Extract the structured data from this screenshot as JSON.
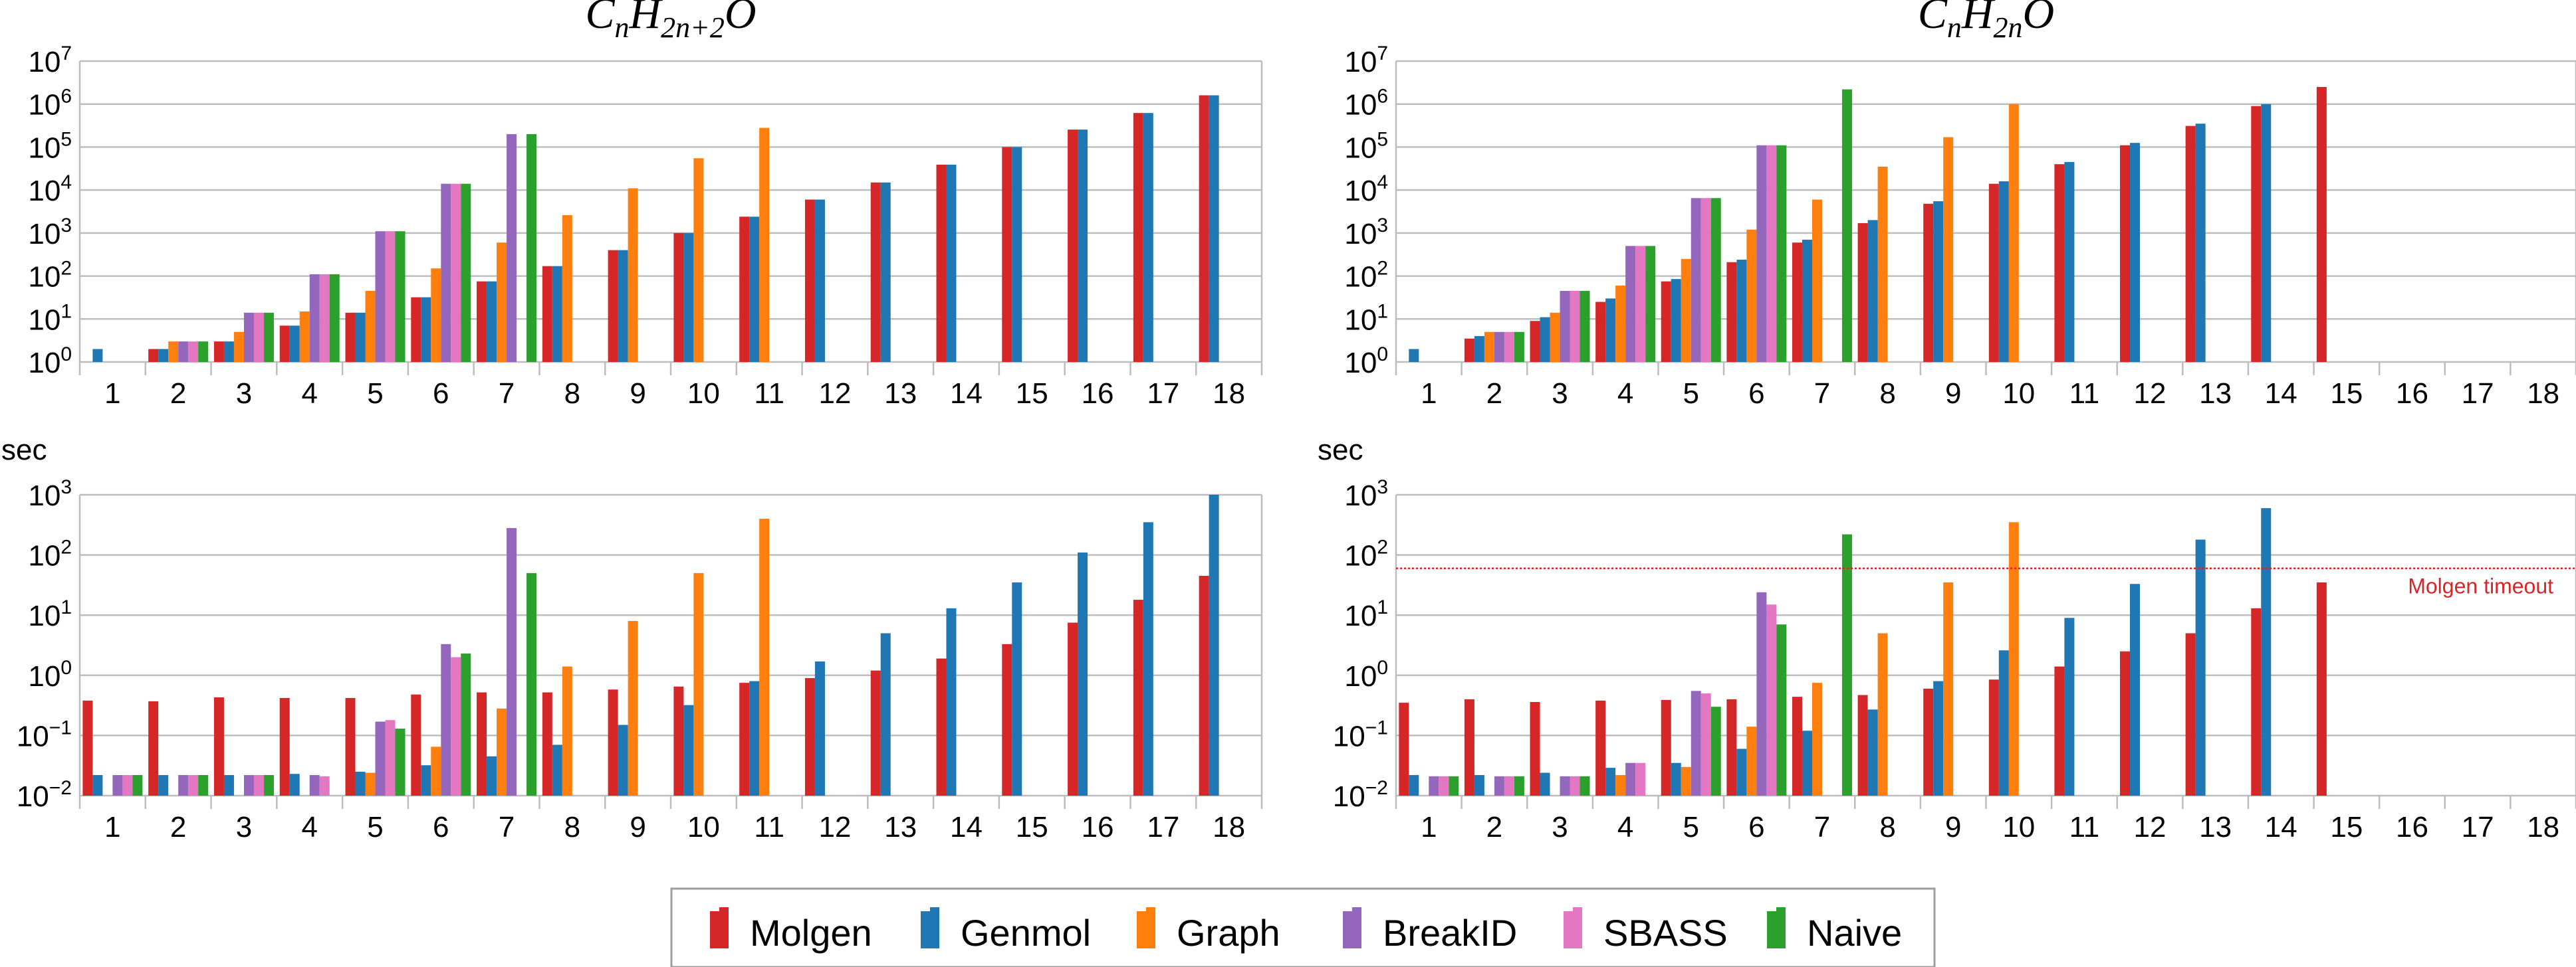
{
  "colors": {
    "Molgen": "#d62728",
    "Genmol": "#1f77b4",
    "Graph": "#ff7f0e",
    "BreakID": "#9467bd",
    "SBASS": "#e377c2",
    "Naive": "#2ca02c",
    "grid": "#bdbdbd",
    "timeout_line": "#d62728"
  },
  "legend": {
    "labels": [
      "Molgen",
      "Genmol",
      "Graph",
      "BreakID",
      "SBASS",
      "Naive"
    ]
  },
  "chart_data": [
    {
      "type": "bar",
      "title": "CnH2n+2O",
      "title_parts": [
        "C",
        "n",
        "H",
        "2n+2",
        "O"
      ],
      "yunit": "",
      "yscale": "log",
      "ylim_exp": [
        0,
        7
      ],
      "ytick_exponents": [
        0,
        1,
        2,
        3,
        4,
        5,
        6,
        7
      ],
      "categories": [
        "1",
        "2",
        "3",
        "4",
        "5",
        "6",
        "7",
        "8",
        "9",
        "10",
        "11",
        "12",
        "13",
        "14",
        "15",
        "16",
        "17",
        "18"
      ],
      "series": [
        {
          "name": "Molgen",
          "values": [
            1,
            2,
            3,
            7,
            14,
            32,
            75,
            170,
            400,
            1000,
            2400,
            6000,
            15000,
            39000,
            100000,
            255000,
            620000,
            1600000
          ]
        },
        {
          "name": "Genmol",
          "values": [
            2,
            2,
            3,
            7,
            14,
            32,
            75,
            170,
            400,
            1000,
            2400,
            6000,
            15000,
            39000,
            100000,
            255000,
            620000,
            1600000
          ]
        },
        {
          "name": "Graph",
          "values": [
            null,
            3,
            5,
            15,
            45,
            150,
            600,
            2600,
            11000,
            55000,
            280000,
            null,
            null,
            null,
            null,
            null,
            null,
            null
          ]
        },
        {
          "name": "BreakID",
          "values": [
            null,
            3,
            14,
            110,
            1100,
            14000,
            200000,
            null,
            null,
            null,
            null,
            null,
            null,
            null,
            null,
            null,
            null,
            null
          ]
        },
        {
          "name": "SBASS",
          "values": [
            1,
            3,
            14,
            110,
            1100,
            14000,
            null,
            null,
            null,
            null,
            null,
            null,
            null,
            null,
            null,
            null,
            null,
            null
          ]
        },
        {
          "name": "Naive",
          "values": [
            null,
            3,
            14,
            110,
            1100,
            14000,
            200000,
            null,
            null,
            null,
            null,
            null,
            null,
            null,
            null,
            null,
            null,
            null
          ]
        }
      ]
    },
    {
      "type": "bar",
      "title": "CnH2nO",
      "title_parts": [
        "C",
        "n",
        "H",
        "2n",
        "O"
      ],
      "yunit": "",
      "yscale": "log",
      "ylim_exp": [
        0,
        7
      ],
      "ytick_exponents": [
        0,
        1,
        2,
        3,
        4,
        5,
        6,
        7
      ],
      "categories": [
        "1",
        "2",
        "3",
        "4",
        "5",
        "6",
        "7",
        "8",
        "9",
        "10",
        "11",
        "12",
        "13",
        "14",
        "15",
        "16",
        "17",
        "18"
      ],
      "series": [
        {
          "name": "Molgen",
          "values": [
            1,
            3.5,
            9,
            25,
            75,
            210,
            600,
            1700,
            4800,
            14000,
            40000,
            110000,
            310000,
            900000,
            2500000,
            null,
            null,
            null
          ]
        },
        {
          "name": "Genmol",
          "values": [
            2,
            4,
            11,
            30,
            85,
            240,
            700,
            2000,
            5500,
            16000,
            45000,
            125000,
            350000,
            1000000,
            null,
            null,
            null,
            null
          ]
        },
        {
          "name": "Graph",
          "values": [
            null,
            5,
            14,
            60,
            250,
            1200,
            6000,
            35000,
            170000,
            1000000,
            null,
            null,
            null,
            null,
            null,
            null,
            null,
            null
          ]
        },
        {
          "name": "BreakID",
          "values": [
            null,
            5,
            45,
            500,
            6500,
            110000,
            null,
            null,
            null,
            null,
            null,
            null,
            null,
            null,
            null,
            null,
            null,
            null
          ]
        },
        {
          "name": "SBASS",
          "values": [
            1,
            5,
            45,
            500,
            6500,
            110000,
            null,
            null,
            null,
            null,
            null,
            null,
            null,
            null,
            null,
            null,
            null,
            null
          ]
        },
        {
          "name": "Naive",
          "values": [
            null,
            5,
            45,
            500,
            6500,
            110000,
            2200000,
            null,
            null,
            null,
            null,
            null,
            null,
            null,
            null,
            null,
            null,
            null
          ]
        }
      ]
    },
    {
      "type": "bar",
      "title": "",
      "yunit": "sec",
      "yscale": "log",
      "ylim_exp": [
        -2,
        3
      ],
      "ytick_exponents": [
        -2,
        -1,
        0,
        1,
        2,
        3
      ],
      "categories": [
        "1",
        "2",
        "3",
        "4",
        "5",
        "6",
        "7",
        "8",
        "9",
        "10",
        "11",
        "12",
        "13",
        "14",
        "15",
        "16",
        "17",
        "18"
      ],
      "series": [
        {
          "name": "Molgen",
          "values": [
            0.38,
            0.37,
            0.43,
            0.42,
            0.42,
            0.48,
            0.52,
            0.52,
            0.58,
            0.65,
            0.75,
            0.9,
            1.2,
            1.9,
            3.3,
            7.5,
            18,
            45
          ]
        },
        {
          "name": "Genmol",
          "values": [
            0.022,
            0.022,
            0.022,
            0.023,
            0.025,
            0.032,
            0.045,
            0.07,
            0.15,
            0.32,
            0.8,
            1.7,
            5,
            13,
            35,
            110,
            350,
            1000
          ]
        },
        {
          "name": "Graph",
          "values": [
            null,
            null,
            null,
            null,
            0.024,
            0.065,
            0.28,
            1.4,
            8,
            50,
            400,
            null,
            null,
            null,
            null,
            null,
            null,
            null
          ]
        },
        {
          "name": "BreakID",
          "values": [
            0.022,
            0.022,
            0.022,
            0.022,
            0.17,
            3.3,
            280,
            null,
            null,
            null,
            null,
            null,
            null,
            null,
            null,
            null,
            null,
            null
          ]
        },
        {
          "name": "SBASS",
          "values": [
            0.022,
            0.022,
            0.022,
            0.021,
            0.18,
            2,
            null,
            null,
            null,
            null,
            null,
            null,
            null,
            null,
            null,
            null,
            null,
            null
          ]
        },
        {
          "name": "Naive",
          "values": [
            0.022,
            0.022,
            0.022,
            null,
            0.13,
            2.3,
            50,
            null,
            null,
            null,
            null,
            null,
            null,
            null,
            null,
            null,
            null,
            null
          ]
        }
      ]
    },
    {
      "type": "bar",
      "title": "",
      "yunit": "sec",
      "yscale": "log",
      "ylim_exp": [
        -2,
        3
      ],
      "ytick_exponents": [
        -2,
        -1,
        0,
        1,
        2,
        3
      ],
      "categories": [
        "1",
        "2",
        "3",
        "4",
        "5",
        "6",
        "7",
        "8",
        "9",
        "10",
        "11",
        "12",
        "13",
        "14",
        "15",
        "16",
        "17",
        "18"
      ],
      "reference_line": {
        "value": 60,
        "label": "Molgen timeout"
      },
      "series": [
        {
          "name": "Molgen",
          "values": [
            0.35,
            0.4,
            0.36,
            0.38,
            0.39,
            0.4,
            0.44,
            0.47,
            0.6,
            0.85,
            1.4,
            2.5,
            5,
            13,
            35,
            null,
            null,
            null
          ]
        },
        {
          "name": "Genmol",
          "values": [
            0.022,
            0.022,
            0.024,
            0.029,
            0.035,
            0.06,
            0.12,
            0.27,
            0.8,
            2.6,
            9,
            33,
            180,
            600,
            null,
            null,
            null,
            null
          ]
        },
        {
          "name": "Graph",
          "values": [
            null,
            null,
            null,
            0.022,
            0.03,
            0.14,
            0.75,
            5,
            35,
            350,
            null,
            null,
            null,
            null,
            null,
            null,
            null,
            null
          ]
        },
        {
          "name": "BreakID",
          "values": [
            0.021,
            0.021,
            0.021,
            0.035,
            0.55,
            24,
            null,
            null,
            null,
            null,
            null,
            null,
            null,
            null,
            null,
            null,
            null,
            null
          ]
        },
        {
          "name": "SBASS",
          "values": [
            0.021,
            0.021,
            0.021,
            0.035,
            0.5,
            15,
            null,
            null,
            null,
            null,
            null,
            null,
            null,
            null,
            null,
            null,
            null,
            null
          ]
        },
        {
          "name": "Naive",
          "values": [
            0.021,
            0.021,
            0.021,
            null,
            0.3,
            7,
            220,
            null,
            null,
            null,
            null,
            null,
            null,
            null,
            null,
            null,
            null,
            null
          ]
        }
      ]
    }
  ]
}
